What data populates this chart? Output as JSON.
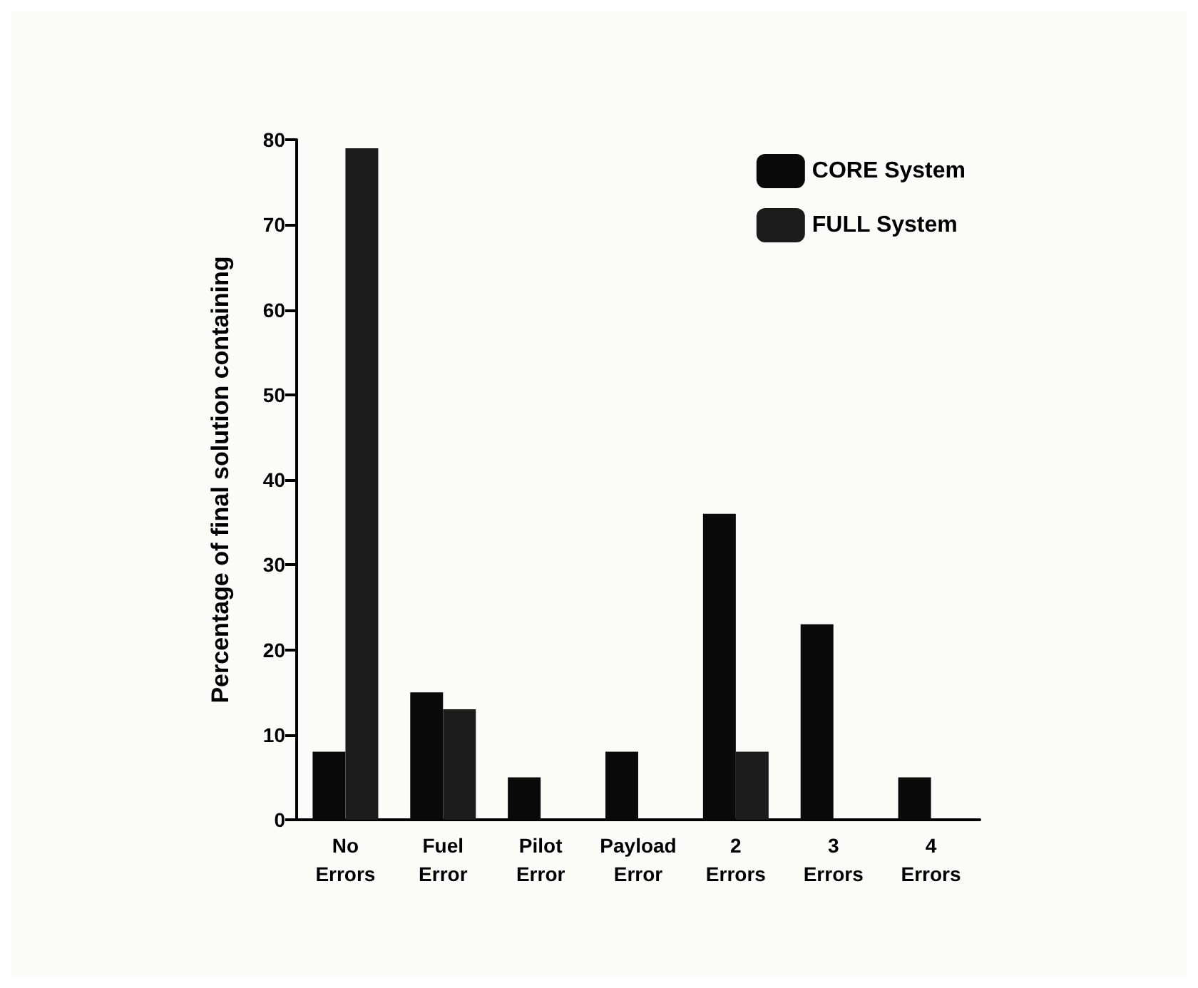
{
  "chart_data": {
    "type": "bar",
    "ylabel": "Percentage of final solution containing",
    "categories": [
      "No\nErrors",
      "Fuel\nError",
      "Pilot\nError",
      "Payload\nError",
      "2\nErrors",
      "3\nErrors",
      "4\nErrors"
    ],
    "series": [
      {
        "name": "CORE System",
        "color": "#0a0a0a",
        "values": [
          8,
          15,
          5,
          8,
          36,
          23,
          5
        ]
      },
      {
        "name": "FULL System",
        "color": "#1c1c1c",
        "values": [
          79,
          13,
          0,
          0,
          8,
          0,
          0
        ]
      }
    ],
    "ylim": [
      0,
      80
    ],
    "yticks": [
      0,
      10,
      20,
      30,
      40,
      50,
      60,
      70,
      80
    ],
    "grid": false,
    "legend": "top right"
  }
}
